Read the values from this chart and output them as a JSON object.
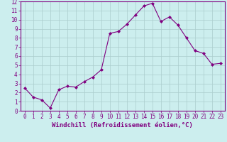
{
  "x": [
    0,
    1,
    2,
    3,
    4,
    5,
    6,
    7,
    8,
    9,
    10,
    11,
    12,
    13,
    14,
    15,
    16,
    17,
    18,
    19,
    20,
    21,
    22,
    23
  ],
  "y": [
    2.5,
    1.5,
    1.2,
    0.3,
    2.3,
    2.7,
    2.6,
    3.2,
    3.7,
    4.5,
    8.5,
    8.7,
    9.5,
    10.5,
    11.5,
    11.8,
    9.8,
    10.3,
    9.4,
    8.0,
    6.6,
    6.3,
    5.1,
    5.2
  ],
  "line_color": "#800080",
  "marker": "D",
  "marker_size": 2,
  "bg_color": "#cceeee",
  "grid_color": "#aacccc",
  "xlabel": "Windchill (Refroidissement éolien,°C)",
  "xlim": [
    -0.5,
    23.5
  ],
  "ylim": [
    0,
    12
  ],
  "xticks": [
    0,
    1,
    2,
    3,
    4,
    5,
    6,
    7,
    8,
    9,
    10,
    11,
    12,
    13,
    14,
    15,
    16,
    17,
    18,
    19,
    20,
    21,
    22,
    23
  ],
  "yticks": [
    0,
    1,
    2,
    3,
    4,
    5,
    6,
    7,
    8,
    9,
    10,
    11,
    12
  ],
  "tick_color": "#800080",
  "label_color": "#800080",
  "tick_fontsize": 5.5,
  "xlabel_fontsize": 6.5
}
